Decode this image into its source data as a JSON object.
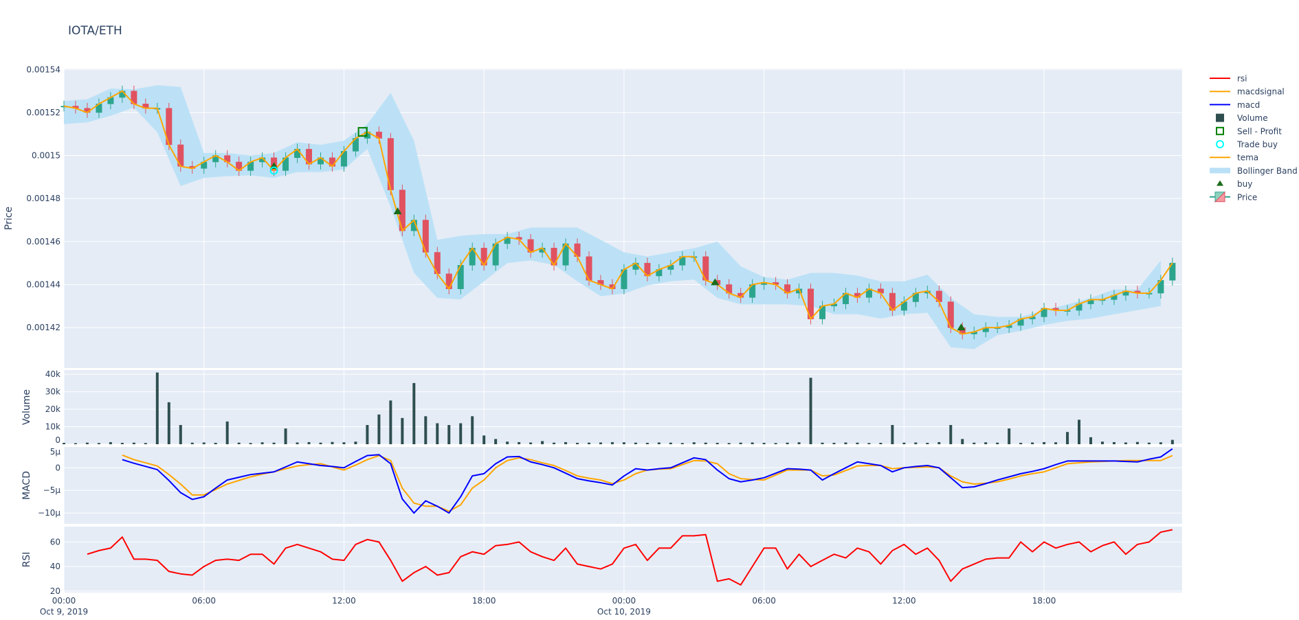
{
  "title": "IOTA/ETH",
  "colors": {
    "background": "#e5ecf6",
    "grid": "#ffffff",
    "increasing": "#2ca58d",
    "decreasing": "#e05260",
    "band": "#b9e0f6",
    "tema": "#ffa500",
    "macd": "#0000ff",
    "macdsignal": "#ffa500",
    "rsi": "#ff0000",
    "volume": "#2f4f4f",
    "buy": "#1a6b1a",
    "sell_profit": "#008000",
    "trade_buy": "#00ffff"
  },
  "legend": {
    "placement": "right",
    "items": [
      {
        "label": "rsi",
        "icon": "line",
        "color": "#ff0000"
      },
      {
        "label": "macdsignal",
        "icon": "line",
        "color": "#ffa500"
      },
      {
        "label": "macd",
        "icon": "line",
        "color": "#0000ff"
      },
      {
        "label": "Volume",
        "icon": "square-filled",
        "color": "#2f4f4f"
      },
      {
        "label": "Sell - Profit",
        "icon": "square-open",
        "color": "#008000"
      },
      {
        "label": "Trade buy",
        "icon": "circle-open",
        "color": "#00ffff"
      },
      {
        "label": "tema",
        "icon": "line",
        "color": "#ffa500"
      },
      {
        "label": "Bollinger Band",
        "icon": "band",
        "color": "#b9e0f6"
      },
      {
        "label": "buy",
        "icon": "triangle-up",
        "color": "#1a6b1a"
      },
      {
        "label": "Price",
        "icon": "candlestick",
        "color": "#2ca58d"
      }
    ]
  },
  "x_axis": {
    "ticks": [
      {
        "time": "2019-10-09 00:00",
        "label": "00:00",
        "sublabel": "Oct 9, 2019"
      },
      {
        "time": "2019-10-09 06:00",
        "label": "06:00",
        "sublabel": ""
      },
      {
        "time": "2019-10-09 12:00",
        "label": "12:00",
        "sublabel": ""
      },
      {
        "time": "2019-10-09 18:00",
        "label": "18:00",
        "sublabel": ""
      },
      {
        "time": "2019-10-10 00:00",
        "label": "00:00",
        "sublabel": "Oct 10, 2019"
      },
      {
        "time": "2019-10-10 06:00",
        "label": "06:00",
        "sublabel": ""
      },
      {
        "time": "2019-10-10 12:00",
        "label": "12:00",
        "sublabel": ""
      },
      {
        "time": "2019-10-10 18:00",
        "label": "18:00",
        "sublabel": ""
      }
    ],
    "range": [
      "2019-10-09 00:00",
      "2019-10-10 23:55"
    ]
  },
  "chart_data": {
    "type": "candlestick-subplots",
    "time": [
      "2019-10-09 00:00",
      "2019-10-09 00:30",
      "2019-10-09 01:00",
      "2019-10-09 01:30",
      "2019-10-09 02:00",
      "2019-10-09 02:30",
      "2019-10-09 03:00",
      "2019-10-09 03:30",
      "2019-10-09 04:00",
      "2019-10-09 04:30",
      "2019-10-09 05:00",
      "2019-10-09 05:30",
      "2019-10-09 06:00",
      "2019-10-09 06:30",
      "2019-10-09 07:00",
      "2019-10-09 07:30",
      "2019-10-09 08:00",
      "2019-10-09 08:30",
      "2019-10-09 09:00",
      "2019-10-09 09:30",
      "2019-10-09 10:00",
      "2019-10-09 10:30",
      "2019-10-09 11:00",
      "2019-10-09 11:30",
      "2019-10-09 12:00",
      "2019-10-09 12:30",
      "2019-10-09 13:00",
      "2019-10-09 13:30",
      "2019-10-09 14:00",
      "2019-10-09 14:30",
      "2019-10-09 15:00",
      "2019-10-09 15:30",
      "2019-10-09 16:00",
      "2019-10-09 16:30",
      "2019-10-09 17:00",
      "2019-10-09 17:30",
      "2019-10-09 18:00",
      "2019-10-09 18:30",
      "2019-10-09 19:00",
      "2019-10-09 19:30",
      "2019-10-09 20:00",
      "2019-10-09 20:30",
      "2019-10-09 21:00",
      "2019-10-09 21:30",
      "2019-10-09 22:00",
      "2019-10-09 22:30",
      "2019-10-09 23:00",
      "2019-10-09 23:30",
      "2019-10-10 00:00",
      "2019-10-10 00:30",
      "2019-10-10 01:00",
      "2019-10-10 01:30",
      "2019-10-10 02:00",
      "2019-10-10 02:30",
      "2019-10-10 03:00",
      "2019-10-10 03:30",
      "2019-10-10 04:00",
      "2019-10-10 04:30",
      "2019-10-10 05:00",
      "2019-10-10 05:30",
      "2019-10-10 06:00",
      "2019-10-10 06:30",
      "2019-10-10 07:00",
      "2019-10-10 07:30",
      "2019-10-10 08:00",
      "2019-10-10 08:30",
      "2019-10-10 09:00",
      "2019-10-10 09:30",
      "2019-10-10 10:00",
      "2019-10-10 10:30",
      "2019-10-10 11:00",
      "2019-10-10 11:30",
      "2019-10-10 12:00",
      "2019-10-10 12:30",
      "2019-10-10 13:00",
      "2019-10-10 13:30",
      "2019-10-10 14:00",
      "2019-10-10 14:30",
      "2019-10-10 15:00",
      "2019-10-10 15:30",
      "2019-10-10 16:00",
      "2019-10-10 16:30",
      "2019-10-10 17:00",
      "2019-10-10 17:30",
      "2019-10-10 18:00",
      "2019-10-10 18:30",
      "2019-10-10 19:00",
      "2019-10-10 19:30",
      "2019-10-10 20:00",
      "2019-10-10 20:30",
      "2019-10-10 21:00",
      "2019-10-10 21:30",
      "2019-10-10 22:00",
      "2019-10-10 22:30",
      "2019-10-10 23:00",
      "2019-10-10 23:30"
    ],
    "close": [
      0.001523,
      0.001522,
      0.00152,
      0.001524,
      0.001527,
      0.00153,
      0.001524,
      0.001522,
      0.001522,
      0.001505,
      0.001495,
      0.001494,
      0.001497,
      0.0015,
      0.001497,
      0.001493,
      0.001497,
      0.001499,
      0.001493,
      0.001499,
      0.001503,
      0.001496,
      0.001499,
      0.001495,
      0.001502,
      0.001508,
      0.001511,
      0.001508,
      0.001484,
      0.001465,
      0.00147,
      0.001455,
      0.001445,
      0.001438,
      0.001449,
      0.001457,
      0.001449,
      0.001459,
      0.001462,
      0.001461,
      0.001455,
      0.001457,
      0.001449,
      0.001459,
      0.001453,
      0.001442,
      0.00144,
      0.001438,
      0.001447,
      0.00145,
      0.001444,
      0.001447,
      0.001449,
      0.001453,
      0.001453,
      0.001442,
      0.00144,
      0.001436,
      0.001434,
      0.00144,
      0.001441,
      0.00144,
      0.001436,
      0.001438,
      0.001424,
      0.00143,
      0.001431,
      0.001436,
      0.001434,
      0.001438,
      0.001436,
      0.001428,
      0.001432,
      0.001436,
      0.001437,
      0.001432,
      0.00142,
      0.001417,
      0.001418,
      0.00142,
      0.00142,
      0.001421,
      0.001424,
      0.001425,
      0.001429,
      0.001428,
      0.001428,
      0.001431,
      0.001433,
      0.001433,
      0.001435,
      0.001437,
      0.001436,
      0.001436,
      0.001442,
      0.00145
    ],
    "band_time": [
      "2019-10-09 00:00",
      "2019-10-09 01:00",
      "2019-10-09 02:00",
      "2019-10-09 03:00",
      "2019-10-09 04:00",
      "2019-10-09 05:00",
      "2019-10-09 06:00",
      "2019-10-09 07:00",
      "2019-10-09 08:00",
      "2019-10-09 09:00",
      "2019-10-09 10:00",
      "2019-10-09 11:00",
      "2019-10-09 12:00",
      "2019-10-09 13:00",
      "2019-10-09 14:00",
      "2019-10-09 15:00",
      "2019-10-09 16:00",
      "2019-10-09 17:00",
      "2019-10-09 18:00",
      "2019-10-09 19:00",
      "2019-10-09 20:00",
      "2019-10-09 21:00",
      "2019-10-09 22:00",
      "2019-10-09 23:00",
      "2019-10-10 00:00",
      "2019-10-10 01:00",
      "2019-10-10 02:00",
      "2019-10-10 03:00",
      "2019-10-10 04:00",
      "2019-10-10 05:00",
      "2019-10-10 06:00",
      "2019-10-10 07:00",
      "2019-10-10 08:00",
      "2019-10-10 09:00",
      "2019-10-10 10:00",
      "2019-10-10 11:00",
      "2019-10-10 12:00",
      "2019-10-10 13:00",
      "2019-10-10 14:00",
      "2019-10-10 15:00",
      "2019-10-10 16:00",
      "2019-10-10 17:00",
      "2019-10-10 18:00",
      "2019-10-10 19:00",
      "2019-10-10 20:00",
      "2019-10-10 21:00",
      "2019-10-10 22:00",
      "2019-10-10 23:00"
    ],
    "band_upper": [
      0.0015254,
      0.0015262,
      0.0015312,
      0.0015308,
      0.0015327,
      0.0015319,
      0.0015012,
      0.0015012,
      0.0015,
      0.0015012,
      0.0015062,
      0.001505,
      0.0015069,
      0.0015146,
      0.0015292,
      0.0015069,
      0.0014608,
      0.0014627,
      0.0014635,
      0.0014635,
      0.0014665,
      0.0014665,
      0.0014665,
      0.0014608,
      0.001455,
      0.0014531,
      0.001455,
      0.0014569,
      0.00146,
      0.0014485,
      0.0014435,
      0.0014423,
      0.0014454,
      0.0014454,
      0.0014442,
      0.0014415,
      0.0014415,
      0.0014446,
      0.0014338,
      0.0014262,
      0.001425,
      0.001425,
      0.0014281,
      0.0014308,
      0.0014338,
      0.0014377,
      0.0014377,
      0.0014512
    ],
    "band_lower": [
      0.0015146,
      0.0015154,
      0.0015185,
      0.0015223,
      0.0015108,
      0.0014858,
      0.0014896,
      0.0014904,
      0.0014908,
      0.0014896,
      0.0014923,
      0.0014923,
      0.0014935,
      0.0015031,
      0.0014762,
      0.0014454,
      0.0014338,
      0.0014331,
      0.0014415,
      0.00145,
      0.0014512,
      0.0014492,
      0.0014415,
      0.0014346,
      0.0014358,
      0.0014396,
      0.0014415,
      0.0014423,
      0.0014338,
      0.0014308,
      0.0014308,
      0.0014308,
      0.00143,
      0.0014262,
      0.0014262,
      0.0014242,
      0.0014262,
      0.0014269,
      0.0014108,
      0.00141,
      0.0014165,
      0.0014185,
      0.0014212,
      0.0014231,
      0.0014242,
      0.0014262,
      0.0014281,
      0.00143
    ],
    "volume": [
      800,
      600,
      900,
      700,
      1200,
      800,
      900,
      700,
      41000,
      24000,
      11000,
      900,
      1000,
      800,
      13000,
      900,
      700,
      1100,
      900,
      9000,
      1000,
      1200,
      900,
      1300,
      1100,
      1500,
      11000,
      17000,
      25000,
      15000,
      35000,
      16000,
      12000,
      11000,
      12000,
      16000,
      5000,
      3000,
      1500,
      1200,
      1000,
      1800,
      900,
      1200,
      800,
      900,
      1000,
      1200,
      1100,
      900,
      800,
      1000,
      900,
      700,
      1100,
      900,
      800,
      700,
      900,
      1000,
      800,
      700,
      900,
      1100,
      38000,
      900,
      800,
      1000,
      900,
      700,
      800,
      11000,
      900,
      1000,
      800,
      1200,
      11000,
      3000,
      900,
      1100,
      900,
      9000,
      800,
      1000,
      1200,
      1100,
      7000,
      14000,
      4000,
      1500,
      1200,
      1000,
      1300,
      900,
      1100,
      2500
    ],
    "macd": [
      null,
      null,
      null,
      null,
      null,
      1.8e-06,
      1e-06,
      3e-07,
      -4e-07,
      -2.8e-06,
      -5.5e-06,
      -7e-06,
      -6.4e-06,
      -4.5e-06,
      -2.7e-06,
      -2.1e-06,
      -1.5e-06,
      -1.2e-06,
      -9e-07,
      2e-07,
      1.3e-06,
      9e-07,
      5e-07,
      3e-07,
      0.0,
      1.4e-06,
      2.7e-06,
      2.9e-06,
      9e-07,
      -6.9e-06,
      -1e-05,
      -7.3e-06,
      -8.5e-06,
      -1e-05,
      -6.4e-06,
      -1.8e-06,
      -1.3e-06,
      9e-07,
      2.4e-06,
      2.5e-06,
      1.3e-06,
      7e-07,
      0.0,
      -1.2e-06,
      -2.4e-06,
      -2.9e-06,
      -3.3e-06,
      -3.8e-06,
      -1.8e-06,
      -2e-07,
      -5e-07,
      -2e-07,
      0.0,
      1.1e-06,
      2.2e-06,
      1.8e-06,
      -5e-07,
      -2.4e-06,
      -3.1e-06,
      -2.7e-06,
      -2.2e-06,
      -1.2e-06,
      -2e-07,
      -3e-07,
      -5e-07,
      -2.7e-06,
      -1.3e-06,
      0.0,
      1.3e-06,
      9e-07,
      5e-07,
      -9e-07,
      0.0,
      3e-07,
      5e-07,
      0.0,
      -2.2e-06,
      -4.4e-06,
      -4.2e-06,
      -3.5e-06,
      -2.7e-06,
      -2e-06,
      -1.3e-06,
      -8e-07,
      -2e-07,
      7e-07,
      1.5e-06,
      1.5e-06,
      1.5e-06,
      1.5e-06,
      1.5e-06,
      1.4e-06,
      1.3e-06,
      1.9e-06,
      2.4e-06,
      4.2e-06
    ],
    "macdsignal": [
      null,
      null,
      null,
      null,
      null,
      2.8e-06,
      1.8e-06,
      1.1e-06,
      4e-07,
      -1.5e-06,
      -3.6e-06,
      -6e-06,
      -6e-06,
      -4.8e-06,
      -3.6e-06,
      -2.8e-06,
      -2e-06,
      -1.4e-06,
      -9e-07,
      -2e-07,
      4e-07,
      7e-07,
      9e-07,
      2e-07,
      -5e-07,
      6e-07,
      1.8e-06,
      2.7e-06,
      1.6e-06,
      -4.5e-06,
      -7.8e-06,
      -8.5e-06,
      -8.5e-06,
      -9.6e-06,
      -8.2e-06,
      -4.5e-06,
      -2.7e-06,
      0.0,
      1.6e-06,
      2.2e-06,
      1.8e-06,
      1.1e-06,
      5e-07,
      -6e-07,
      -1.8e-06,
      -2.3e-06,
      -2.7e-06,
      -3.5e-06,
      -2.7e-06,
      -1.3e-06,
      -5e-07,
      -3e-07,
      -2e-07,
      7e-07,
      1.6e-06,
      1.5e-06,
      9e-07,
      -1.3e-06,
      -2.4e-06,
      -2.6e-06,
      -2.7e-06,
      -1.6e-06,
      -5e-07,
      -5e-07,
      -5e-07,
      -1.8e-06,
      -1.6e-06,
      -6e-07,
      4e-07,
      5e-07,
      5e-07,
      -2e-07,
      0.0,
      1e-07,
      2e-07,
      0.0,
      -1.8e-06,
      -3.1e-06,
      -3.6e-06,
      -3.4e-06,
      -3.1e-06,
      -2.5e-06,
      -1.8e-06,
      -1.3e-06,
      -9e-07,
      0.0,
      9e-07,
      1.1e-06,
      1.3e-06,
      1.4e-06,
      1.5e-06,
      1.6e-06,
      1.6e-06,
      1.6e-06,
      1.6e-06,
      2.7e-06
    ],
    "rsi": [
      null,
      null,
      50,
      53,
      55,
      64,
      46,
      46,
      45,
      36,
      34,
      33,
      40,
      45,
      46,
      45,
      50,
      50,
      42,
      55,
      58,
      55,
      52,
      46,
      45,
      58,
      62,
      60,
      45,
      28,
      35,
      40,
      33,
      35,
      48,
      52,
      50,
      57,
      58,
      60,
      52,
      48,
      45,
      55,
      42,
      40,
      38,
      42,
      55,
      58,
      45,
      55,
      55,
      65,
      65,
      66,
      28,
      30,
      25,
      40,
      55,
      55,
      38,
      50,
      40,
      45,
      50,
      47,
      55,
      52,
      42,
      53,
      58,
      50,
      55,
      45,
      28,
      38,
      42,
      46,
      47,
      47,
      60,
      52,
      60,
      55,
      58,
      60,
      52,
      57,
      60,
      50,
      58,
      60,
      68,
      70
    ],
    "buy_markers": [
      {
        "time": "2019-10-09 09:00",
        "price": 0.001495
      },
      {
        "time": "2019-10-09 14:18",
        "price": 0.001474
      },
      {
        "time": "2019-10-10 03:54",
        "price": 0.001441
      },
      {
        "time": "2019-10-10 14:27",
        "price": 0.00142
      }
    ],
    "trade_buy_markers": [
      {
        "time": "2019-10-09 09:00",
        "price": 0.001493
      }
    ],
    "sell_profit_markers": [
      {
        "time": "2019-10-09 12:48",
        "price": 0.001511
      }
    ],
    "subplots": [
      {
        "key": "price",
        "ylabel": "Price",
        "ylim": [
          0.0014012,
          0.0015404
        ],
        "ticks": [
          {
            "v": 0.00142,
            "label": "0.00142"
          },
          {
            "v": 0.00144,
            "label": "0.00144"
          },
          {
            "v": 0.00146,
            "label": "0.00146"
          },
          {
            "v": 0.00148,
            "label": "0.00148"
          },
          {
            "v": 0.0015,
            "label": "0.0015"
          },
          {
            "v": 0.00152,
            "label": "0.00152"
          },
          {
            "v": 0.00154,
            "label": "0.00154"
          }
        ]
      },
      {
        "key": "volume",
        "ylabel": "Volume",
        "ylim": [
          0,
          42400
        ],
        "ticks": [
          {
            "v": 0,
            "label": "0"
          },
          {
            "v": 10000,
            "label": "10k"
          },
          {
            "v": 20000,
            "label": "20k"
          },
          {
            "v": 30000,
            "label": "30k"
          },
          {
            "v": 40000,
            "label": "40k"
          }
        ]
      },
      {
        "key": "macd",
        "ylabel": "MACD",
        "ylim": [
          -1.24e-05,
          4.6e-06
        ],
        "ticks": [
          {
            "v": 5e-06,
            "label": "5µ"
          },
          {
            "v": 0,
            "label": "0"
          },
          {
            "v": -5e-06,
            "label": "−5µ"
          },
          {
            "v": -1e-05,
            "label": "−10µ"
          }
        ]
      },
      {
        "key": "rsi",
        "ylabel": "RSI",
        "ylim": [
          18.8,
          72.5
        ],
        "ticks": [
          {
            "v": 20,
            "label": "20"
          },
          {
            "v": 40,
            "label": "40"
          },
          {
            "v": 60,
            "label": "60"
          }
        ]
      }
    ],
    "grid": true
  }
}
